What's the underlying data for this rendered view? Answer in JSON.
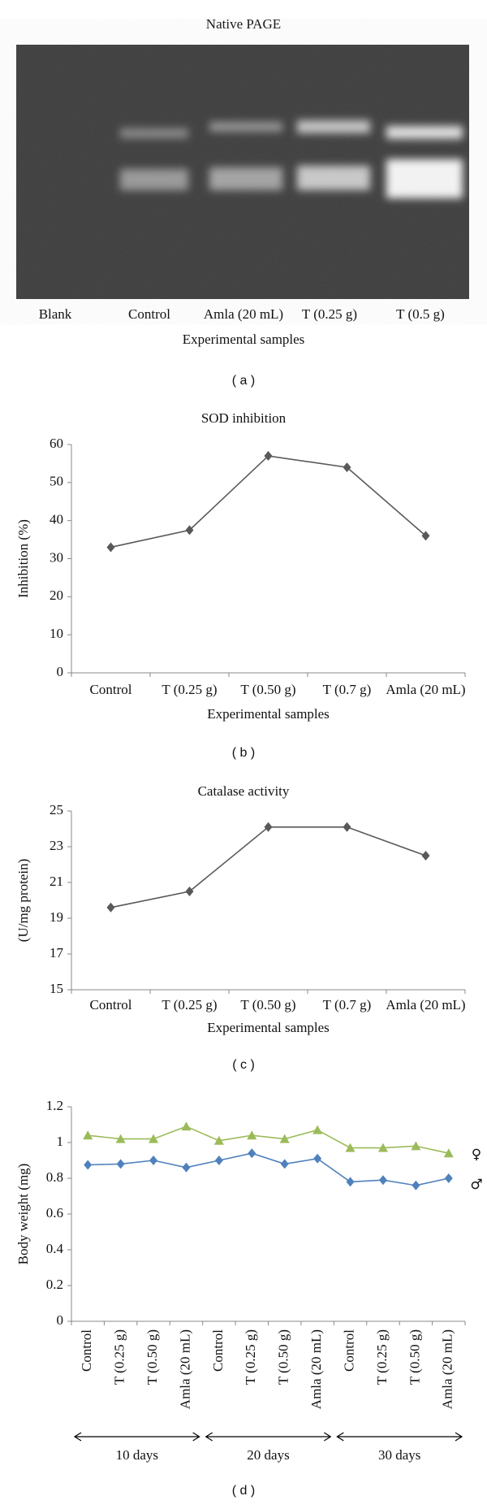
{
  "gel": {
    "title": "Native PAGE",
    "lanes": [
      "Blank",
      "Control",
      "Amla (20 mL)",
      "T (0.25 g)",
      "T (0.5 g)"
    ],
    "x_label": "Experimental samples",
    "label": "( a )"
  },
  "chart_data": [
    {
      "type": "line",
      "title": "SOD inhibition",
      "x_label": "Experimental samples",
      "y_label": "Inhibition (%)",
      "label": "( b )",
      "categories": [
        "Control",
        "T (0.25 g)",
        "T (0.50 g)",
        "T (0.7 g)",
        "Amla (20 mL)"
      ],
      "series": [
        {
          "color": "#595959",
          "marker": "diamond",
          "values": [
            33,
            37.5,
            57,
            54,
            36
          ]
        }
      ],
      "ylim": [
        0,
        60
      ],
      "yticks": [
        0,
        10,
        20,
        30,
        40,
        50,
        60
      ]
    },
    {
      "type": "line",
      "title": "Catalase activity",
      "x_label": "Experimental samples",
      "y_label": "(U/mg protein)",
      "label": "( c )",
      "categories": [
        "Control",
        "T (0.25 g)",
        "T (0.50 g)",
        "T (0.7 g)",
        "Amla (20 mL)"
      ],
      "series": [
        {
          "color": "#595959",
          "marker": "diamond",
          "values": [
            19.6,
            20.5,
            24.1,
            24.1,
            22.5
          ]
        }
      ],
      "ylim": [
        15,
        25
      ],
      "yticks": [
        15,
        17,
        19,
        21,
        23,
        25
      ]
    },
    {
      "type": "line",
      "y_label": "Body weight (mg)",
      "label": "( d )",
      "categories": [
        "Control",
        "T (0.25 g)",
        "T (0.50 g)",
        "Amla (20 mL)",
        "Control",
        "T (0.25 g)",
        "T (0.50 g)",
        "Amla (20 mL)",
        "Control",
        "T (0.25 g)",
        "T (0.50 g)",
        "Amla (20 mL)"
      ],
      "groups": [
        "10 days",
        "20 days",
        "30 days"
      ],
      "series": [
        {
          "name": "♀",
          "color": "#9bbb59",
          "marker": "triangle",
          "values": [
            1.04,
            1.02,
            1.02,
            1.09,
            1.01,
            1.04,
            1.02,
            1.07,
            0.97,
            0.97,
            0.98,
            0.94
          ]
        },
        {
          "name": "♂",
          "color": "#4f81bd",
          "marker": "diamond",
          "values": [
            0.875,
            0.88,
            0.9,
            0.86,
            0.9,
            0.94,
            0.88,
            0.91,
            0.78,
            0.79,
            0.76,
            0.8
          ]
        }
      ],
      "ylim": [
        0,
        1.2
      ],
      "yticks": [
        0,
        0.2,
        0.4,
        0.6,
        0.8,
        1,
        1.2
      ]
    }
  ]
}
